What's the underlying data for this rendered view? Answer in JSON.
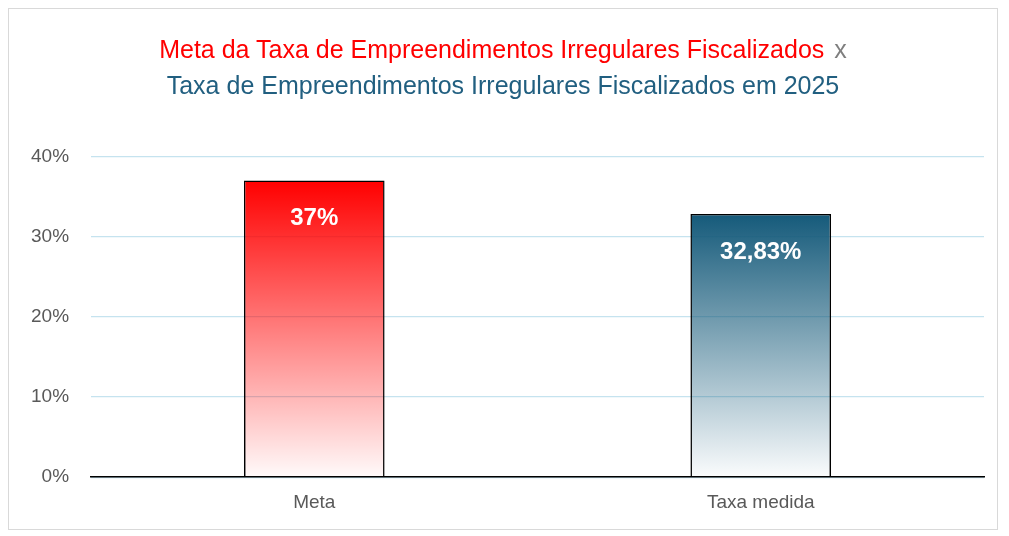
{
  "chart_data": {
    "type": "bar",
    "title": "Meta da Taxa de Empreendimentos Irregulares Fiscalizados x",
    "subtitle": "Taxa de Empreendimentos Irregulares Fiscalizados em 2025",
    "categories": [
      "Meta",
      "Taxa medida"
    ],
    "values": [
      37,
      32.83
    ],
    "colors": [
      "#ff0000",
      "#155a7a"
    ],
    "value_labels": [
      "37%",
      "32,83%"
    ],
    "ylim": [
      0,
      40
    ],
    "yticks": [
      {
        "value": 0,
        "label": "0%"
      },
      {
        "value": 10,
        "label": "10%"
      },
      {
        "value": 20,
        "label": "20%"
      },
      {
        "value": 30,
        "label": "30%"
      },
      {
        "value": 40,
        "label": "40%"
      }
    ],
    "grid": "y",
    "legend": false
  }
}
